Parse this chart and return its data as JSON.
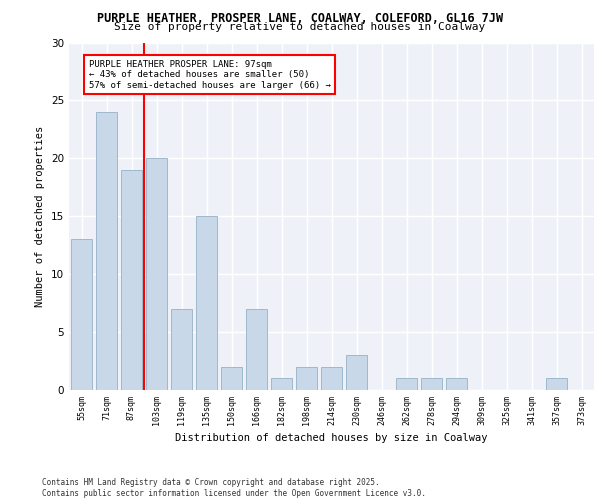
{
  "title_line1": "PURPLE HEATHER, PROSPER LANE, COALWAY, COLEFORD, GL16 7JW",
  "title_line2": "Size of property relative to detached houses in Coalway",
  "xlabel": "Distribution of detached houses by size in Coalway",
  "ylabel": "Number of detached properties",
  "categories": [
    "55sqm",
    "71sqm",
    "87sqm",
    "103sqm",
    "119sqm",
    "135sqm",
    "150sqm",
    "166sqm",
    "182sqm",
    "198sqm",
    "214sqm",
    "230sqm",
    "246sqm",
    "262sqm",
    "278sqm",
    "294sqm",
    "309sqm",
    "325sqm",
    "341sqm",
    "357sqm",
    "373sqm"
  ],
  "values": [
    13,
    24,
    19,
    20,
    7,
    15,
    2,
    7,
    1,
    2,
    2,
    3,
    0,
    1,
    1,
    1,
    0,
    0,
    0,
    1,
    0
  ],
  "bar_color": "#c8d8e8",
  "bar_edge_color": "#a0b8cc",
  "annotation_text": "PURPLE HEATHER PROSPER LANE: 97sqm\n← 43% of detached houses are smaller (50)\n57% of semi-detached houses are larger (66) →",
  "annotation_box_color": "white",
  "annotation_box_edge": "red",
  "ylim": [
    0,
    30
  ],
  "yticks": [
    0,
    5,
    10,
    15,
    20,
    25,
    30
  ],
  "background_color": "#eef2f8",
  "grid_color": "white",
  "footer_line1": "Contains HM Land Registry data © Crown copyright and database right 2025.",
  "footer_line2": "Contains public sector information licensed under the Open Government Licence v3.0."
}
